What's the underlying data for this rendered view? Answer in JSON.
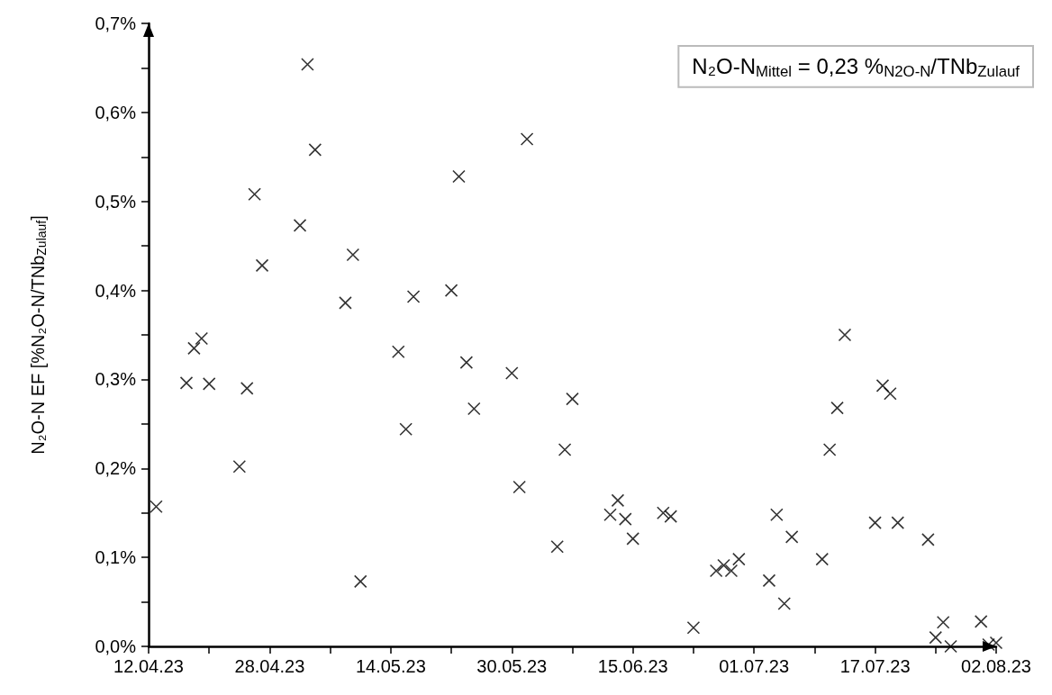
{
  "chart_data": {
    "type": "scatter",
    "ylabel": "N₂O-N EF [%N₂O-N/TNb$_{Zulauf}$]",
    "annotations": [
      "N₂O-N$_{Mittel}$ = 0,23 %$_{N2O-N}$/TNb$_{Zulauf}$"
    ],
    "marker": "cross",
    "grid": false,
    "xlim": [
      "--04-12",
      "--08-02"
    ],
    "xticks": [
      {
        "value": "--04-12",
        "label": "12.04.23"
      },
      {
        "value": "--04-20",
        "label": null
      },
      {
        "value": "--04-28",
        "label": "28.04.23"
      },
      {
        "value": "--05-06",
        "label": null
      },
      {
        "value": "--05-14",
        "label": "14.05.23"
      },
      {
        "value": "--05-22",
        "label": null
      },
      {
        "value": "--05-30",
        "label": "30.05.23"
      },
      {
        "value": "--06-07",
        "label": null
      },
      {
        "value": "--06-15",
        "label": "15.06.23"
      },
      {
        "value": "--06-23",
        "label": null
      },
      {
        "value": "--07-01",
        "label": "01.07.23"
      },
      {
        "value": "--07-09",
        "label": null
      },
      {
        "value": "--07-17",
        "label": "17.07.23"
      },
      {
        "value": "--07-25",
        "label": null
      },
      {
        "value": "--08-02",
        "label": "02.08.23"
      }
    ],
    "ylim": [
      0,
      0.7
    ],
    "yticks": [
      {
        "value": 0,
        "label": "0,0%"
      },
      {
        "value": 0.05,
        "label": null
      },
      {
        "value": 0.1,
        "label": "0,1%"
      },
      {
        "value": 0.15,
        "label": null
      },
      {
        "value": 0.2,
        "label": "0,2%"
      },
      {
        "value": 0.25,
        "label": null
      },
      {
        "value": 0.3,
        "label": "0,3%"
      },
      {
        "value": 0.35,
        "label": null
      },
      {
        "value": 0.4,
        "label": "0,4%"
      },
      {
        "value": 0.45,
        "label": null
      },
      {
        "value": 0.5,
        "label": "0,5%"
      },
      {
        "value": 0.55,
        "label": null
      },
      {
        "value": 0.6,
        "label": "0,6%"
      },
      {
        "value": 0.65,
        "label": null
      },
      {
        "value": 0.7,
        "label": "0,7%"
      }
    ],
    "series": [
      {
        "color": "#000000",
        "x": [
          "--04-13",
          "--04-17",
          "--04-18",
          "--04-19",
          "--04-20",
          "--04-24",
          "--04-25",
          "--04-26",
          "--04-27",
          "--05-02",
          "--05-03",
          "--05-04",
          "--05-08",
          "--05-09",
          "--05-10",
          "--05-15",
          "--05-16",
          "--05-17",
          "--05-22",
          "--05-23",
          "--05-24",
          "--05-25",
          "--05-30",
          "--05-31",
          "--06-01",
          "--06-05",
          "--06-06",
          "--06-07",
          "--06-12",
          "--06-13",
          "--06-14",
          "--06-15",
          "--06-19",
          "--06-20",
          "--06-23",
          "--06-26",
          "--06-27",
          "--06-28",
          "--06-29",
          "--07-03",
          "--07-04",
          "--07-05",
          "--07-06",
          "--07-10",
          "--07-11",
          "--07-12",
          "--07-13",
          "--07-17",
          "--07-18",
          "--07-19",
          "--07-20",
          "--07-24",
          "--07-25",
          "--07-26",
          "--07-27",
          "--07-31",
          "--08-01",
          "--08-02"
        ],
        "values": [
          0.157,
          0.296,
          0.335,
          0.346,
          0.295,
          0.202,
          0.29,
          0.508,
          0.428,
          0.473,
          0.654,
          0.558,
          0.386,
          0.44,
          0.073,
          0.331,
          0.244,
          0.393,
          0.4,
          0.528,
          0.319,
          0.267,
          0.307,
          0.179,
          0.57,
          0.112,
          0.221,
          0.278,
          0.148,
          0.164,
          0.143,
          0.121,
          0.15,
          0.146,
          0.021,
          0.085,
          0.091,
          0.085,
          0.098,
          0.074,
          0.148,
          0.048,
          0.123,
          0.098,
          0.221,
          0.268,
          0.35,
          0.139,
          0.293,
          0.284,
          0.139,
          0.12,
          0.01,
          0.027,
          0.0,
          0.028,
          0.002,
          0.004
        ]
      }
    ]
  }
}
